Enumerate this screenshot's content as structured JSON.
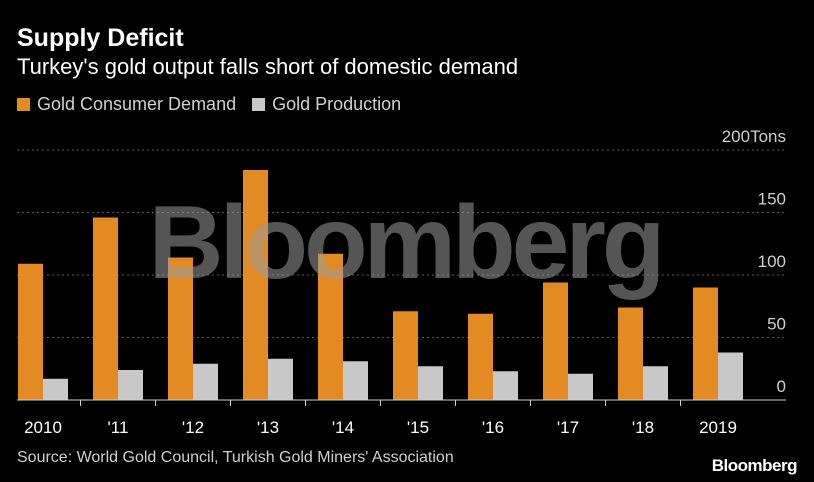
{
  "title": "Supply Deficit",
  "subtitle": "Turkey's gold output falls short of domestic demand",
  "source": "Source: World Gold Council, Turkish Gold Miners' Association",
  "brand": "Bloomberg",
  "watermark": "Bloomberg",
  "colors": {
    "background": "#000000",
    "demand": "#e38a22",
    "production": "#c8c8c8",
    "grid": "#5a5a5a",
    "text": "#ffffff"
  },
  "chart_data": {
    "type": "bar",
    "categories": [
      "2010",
      "'11",
      "'12",
      "'13",
      "'14",
      "'15",
      "'16",
      "'17",
      "'18",
      "2019"
    ],
    "series": [
      {
        "name": "Gold Consumer Demand",
        "color": "#e38a22",
        "values": [
          109,
          146,
          114,
          184,
          117,
          71,
          69,
          94,
          74,
          90
        ]
      },
      {
        "name": "Gold Production",
        "color": "#c8c8c8",
        "values": [
          17,
          24,
          29,
          33,
          31,
          27,
          23,
          21,
          27,
          38
        ]
      }
    ],
    "ylim": [
      0,
      200
    ],
    "yticks": [
      0,
      50,
      100,
      150,
      200
    ],
    "ytick_labels": [
      "0",
      "50",
      "100",
      "150",
      "200Tons"
    ],
    "yaxis_position": "right",
    "grid": true,
    "legend_position": "top-left"
  }
}
